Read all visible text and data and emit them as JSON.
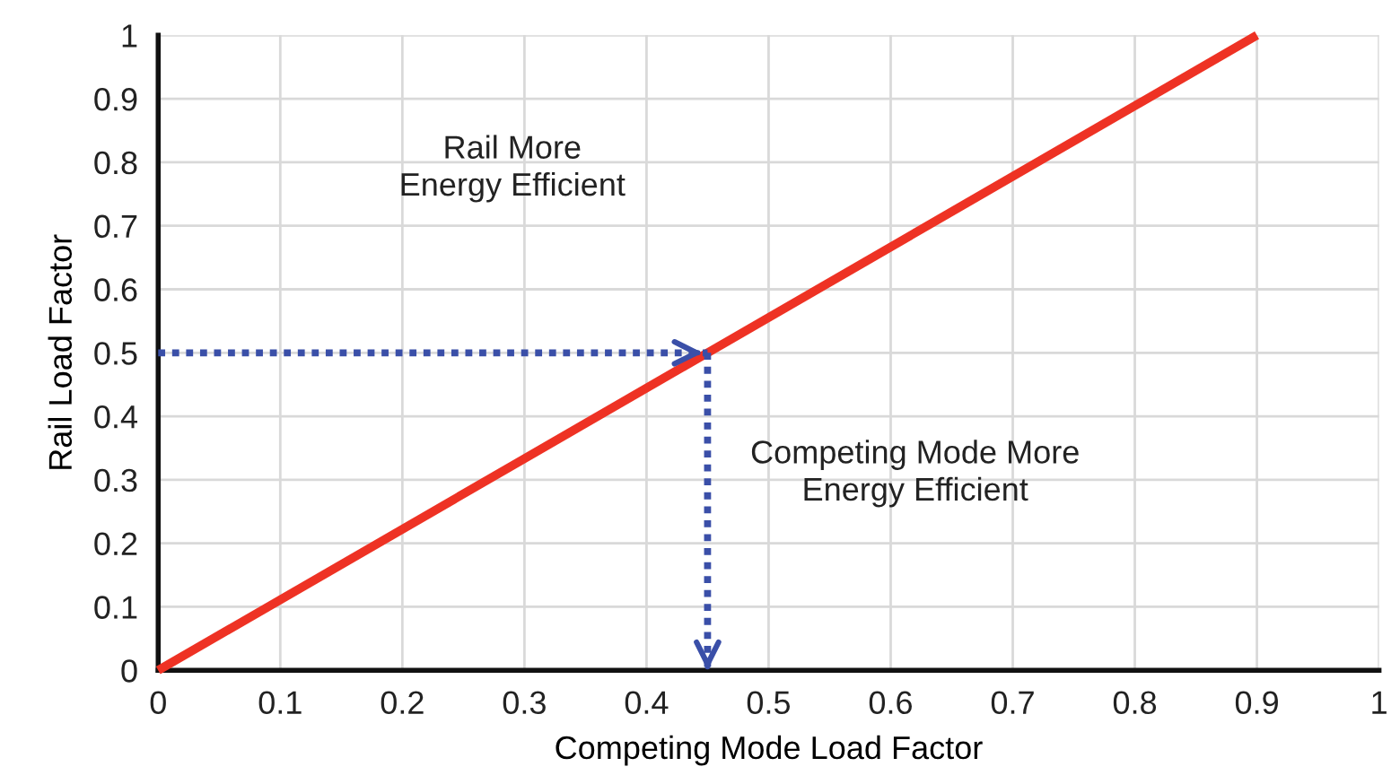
{
  "chart_data": {
    "type": "line",
    "xlabel": "Competing Mode Load Factor",
    "ylabel": "Rail Load Factor",
    "xlim": [
      0,
      1
    ],
    "ylim": [
      0,
      1
    ],
    "xticks": [
      0,
      0.1,
      0.2,
      0.3,
      0.4,
      0.5,
      0.6,
      0.7,
      0.8,
      0.9,
      1
    ],
    "yticks": [
      0,
      0.1,
      0.2,
      0.3,
      0.4,
      0.5,
      0.6,
      0.7,
      0.8,
      0.9,
      1
    ],
    "grid": true,
    "marker": "none",
    "series": [
      {
        "color": "#ee3224",
        "x": [
          0,
          0.9
        ],
        "values": [
          0,
          1
        ],
        "line_style": "solid"
      },
      {
        "color": "#3a4fa8",
        "x": [
          0,
          0.45
        ],
        "values": [
          0.5,
          0.5
        ],
        "line_style": "dotted"
      },
      {
        "color": "#3a4fa8",
        "x": [
          0.45,
          0.45
        ],
        "values": [
          0.5,
          0
        ],
        "line_style": "dotted"
      }
    ],
    "annotations": [
      "Rail More\nEnergy Efficient",
      "Competing Mode More\nEnergy Efficient"
    ]
  }
}
